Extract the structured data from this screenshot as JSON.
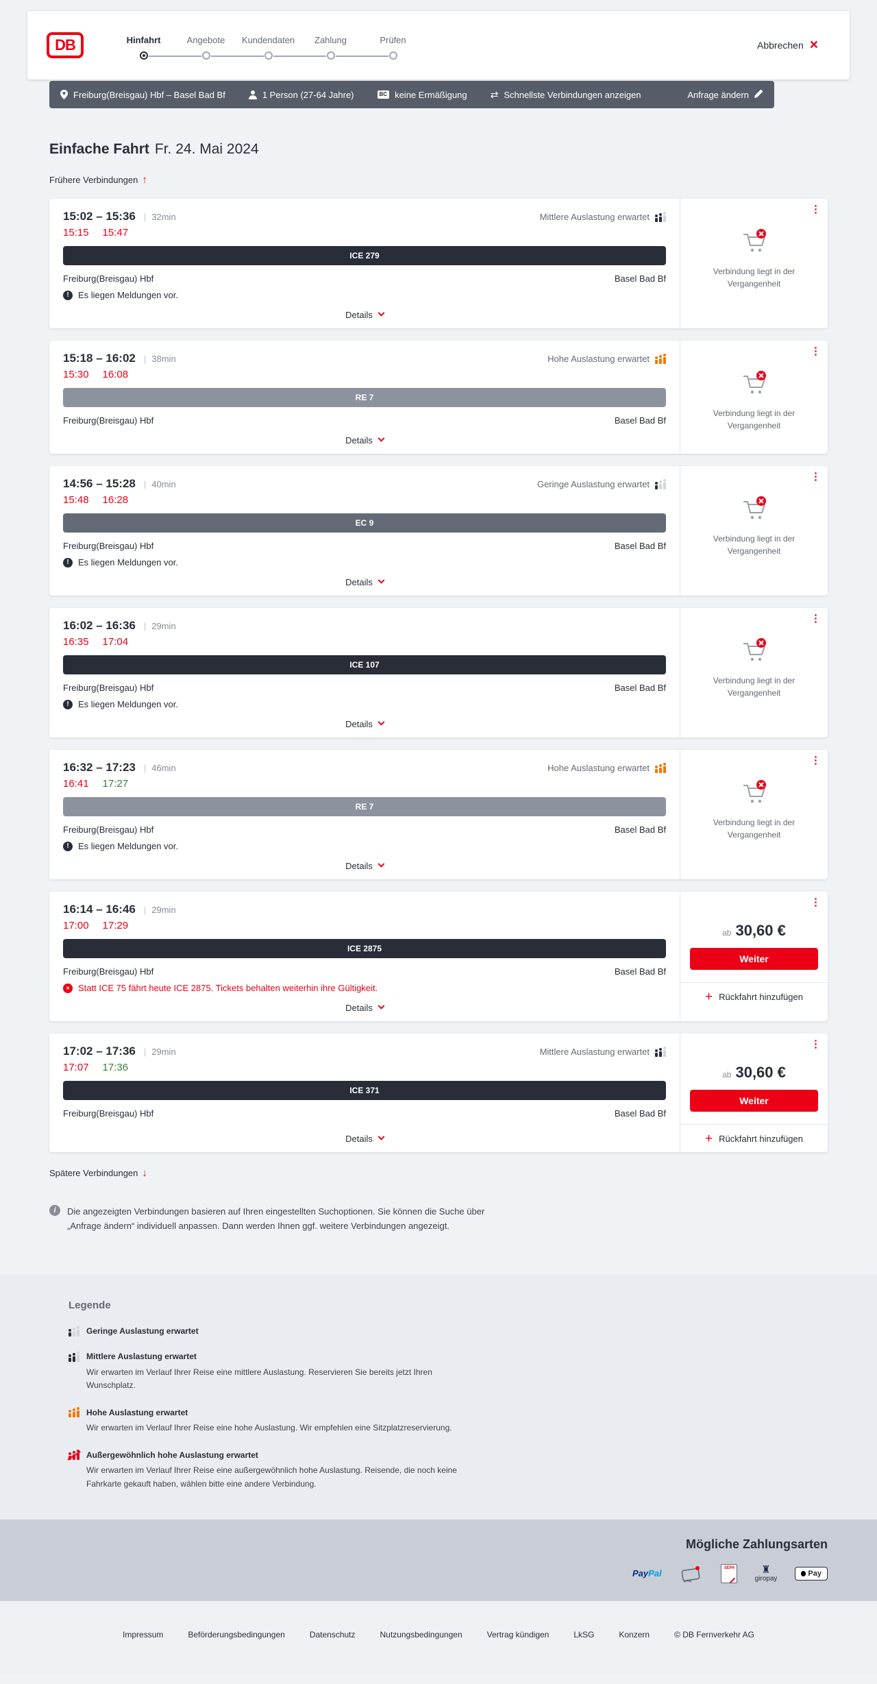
{
  "colors": {
    "brand_red": "#ec0016",
    "dark": "#282d37",
    "slate_bar": "#575d68",
    "late_red": "#ec0016",
    "early_green": "#308236",
    "occupancy_orange": "#f07800"
  },
  "header": {
    "logo": "DB",
    "cancel": "Abbrechen",
    "steps": [
      {
        "label": "Hinfahrt",
        "active": "true"
      },
      {
        "label": "Angebote",
        "active": "false"
      },
      {
        "label": "Kundendaten",
        "active": "false"
      },
      {
        "label": "Zahlung",
        "active": "false"
      },
      {
        "label": "Prüfen",
        "active": "false"
      }
    ]
  },
  "filterbar": {
    "route": "Freiburg(Breisgau) Hbf – Basel Bad Bf",
    "passenger": "1 Person (27-64 Jahre)",
    "bahncard_badge": "BC",
    "discount": "keine Ermäßigung",
    "speed": "Schnellste Verbindungen anzeigen",
    "change": "Anfrage ändern"
  },
  "page": {
    "title": "Einfache Fahrt",
    "date": "Fr. 24. Mai 2024",
    "earlier": "Frühere Verbindungen",
    "later": "Spätere Verbindungen",
    "info": "Die angezeigten Verbindungen basieren auf Ihren eingestellten Suchoptionen. Sie können die Suche über „Anfrage ändern“ individuell anpassen. Dann werden Ihnen ggf. weitere Verbindungen angezeigt."
  },
  "connections": [
    {
      "time_range": "15:02 – 15:36",
      "duration": "32min",
      "rt_dep": "15:15",
      "rt_dep_tone": "late",
      "rt_arr": "15:47",
      "rt_arr_tone": "late",
      "occupancy": "Mittlere Auslastung erwartet",
      "occupancy_level": "mittel",
      "train": "ICE 279",
      "train_kind": "ice",
      "from": "Freiburg(Breisgau) Hbf",
      "to": "Basel Bad Bf",
      "notice": "Es liegen Meldungen vor.",
      "notice_kind": "info",
      "details": "Details",
      "aside": {
        "type": "past",
        "message": "Verbindung liegt in der Vergangenheit"
      }
    },
    {
      "time_range": "15:18 – 16:02",
      "duration": "38min",
      "rt_dep": "15:30",
      "rt_dep_tone": "late",
      "rt_arr": "16:08",
      "rt_arr_tone": "late",
      "occupancy": "Hohe Auslastung erwartet",
      "occupancy_level": "hoch",
      "train": "RE 7",
      "train_kind": "re",
      "from": "Freiburg(Breisgau) Hbf",
      "to": "Basel Bad Bf",
      "notice": "",
      "notice_kind": "",
      "details": "Details",
      "aside": {
        "type": "past",
        "message": "Verbindung liegt in der Vergangenheit"
      }
    },
    {
      "time_range": "14:56 – 15:28",
      "duration": "40min",
      "rt_dep": "15:48",
      "rt_dep_tone": "late",
      "rt_arr": "16:28",
      "rt_arr_tone": "late",
      "occupancy": "Geringe Auslastung erwartet",
      "occupancy_level": "gering",
      "train": "EC 9",
      "train_kind": "ec",
      "from": "Freiburg(Breisgau) Hbf",
      "to": "Basel Bad Bf",
      "notice": "Es liegen Meldungen vor.",
      "notice_kind": "info",
      "details": "Details",
      "aside": {
        "type": "past",
        "message": "Verbindung liegt in der Vergangenheit"
      }
    },
    {
      "time_range": "16:02 – 16:36",
      "duration": "29min",
      "rt_dep": "16:35",
      "rt_dep_tone": "late",
      "rt_arr": "17:04",
      "rt_arr_tone": "late",
      "occupancy": "",
      "occupancy_level": "",
      "train": "ICE 107",
      "train_kind": "ice",
      "from": "Freiburg(Breisgau) Hbf",
      "to": "Basel Bad Bf",
      "notice": "Es liegen Meldungen vor.",
      "notice_kind": "info",
      "details": "Details",
      "aside": {
        "type": "past",
        "message": "Verbindung liegt in der Vergangenheit"
      }
    },
    {
      "time_range": "16:32 – 17:23",
      "duration": "46min",
      "rt_dep": "16:41",
      "rt_dep_tone": "late",
      "rt_arr": "17:27",
      "rt_arr_tone": "early",
      "occupancy": "Hohe Auslastung erwartet",
      "occupancy_level": "hoch",
      "train": "RE 7",
      "train_kind": "re",
      "from": "Freiburg(Breisgau) Hbf",
      "to": "Basel Bad Bf",
      "notice": "Es liegen Meldungen vor.",
      "notice_kind": "info",
      "details": "Details",
      "aside": {
        "type": "past",
        "message": "Verbindung liegt in der Vergangenheit"
      }
    },
    {
      "time_range": "16:14 – 16:46",
      "duration": "29min",
      "rt_dep": "17:00",
      "rt_dep_tone": "late",
      "rt_arr": "17:29",
      "rt_arr_tone": "late",
      "occupancy": "",
      "occupancy_level": "",
      "train": "ICE 2875",
      "train_kind": "ice",
      "from": "Freiburg(Breisgau) Hbf",
      "to": "Basel Bad Bf",
      "notice": "Statt ICE 75 fährt heute ICE 2875. Tickets behalten weiterhin ihre Gültigkeit.",
      "notice_kind": "error",
      "details": "Details",
      "aside": {
        "type": "offer",
        "price_prefix": "ab",
        "price": "30,60 €",
        "cta": "Weiter",
        "add_return": "Rückfahrt hinzufügen"
      }
    },
    {
      "time_range": "17:02 – 17:36",
      "duration": "29min",
      "rt_dep": "17:07",
      "rt_dep_tone": "late",
      "rt_arr": "17:36",
      "rt_arr_tone": "early",
      "occupancy": "Mittlere Auslastung erwartet",
      "occupancy_level": "mittel",
      "train": "ICE 371",
      "train_kind": "ice",
      "from": "Freiburg(Breisgau) Hbf",
      "to": "Basel Bad Bf",
      "notice": "",
      "notice_kind": "",
      "details": "Details",
      "aside": {
        "type": "offer",
        "price_prefix": "ab",
        "price": "30,60 €",
        "cta": "Weiter",
        "add_return": "Rückfahrt hinzufügen"
      }
    }
  ],
  "legend": {
    "title": "Legende",
    "items": [
      {
        "label": "Geringe Auslastung erwartet",
        "level": "gering",
        "desc": ""
      },
      {
        "label": "Mittlere Auslastung erwartet",
        "level": "mittel",
        "desc": "Wir erwarten im Verlauf Ihrer Reise eine mittlere Auslastung. Reservieren Sie bereits jetzt Ihren Wunschplatz."
      },
      {
        "label": "Hohe Auslastung erwartet",
        "level": "hoch",
        "desc": "Wir erwarten im Verlauf Ihrer Reise eine hohe Auslastung. Wir empfehlen eine Sitzplatzreservierung."
      },
      {
        "label": "Außergewöhnlich hohe Auslastung erwartet",
        "level": "sehr-hoch",
        "desc": "Wir erwarten im Verlauf Ihrer Reise eine außergewöhnlich hohe Auslastung. Reisende, die noch keine Fahrkarte gekauft haben, wählen bitte eine andere Verbindung."
      }
    ]
  },
  "payments": {
    "title": "Mögliche Zahlungsarten",
    "paypal_p1": "Pay",
    "paypal_p2": "Pal",
    "sepa_label": "SEPA",
    "giropay_label": "giropay",
    "applepay_label": "Pay"
  },
  "footer": {
    "links": [
      "Impressum",
      "Beförderungsbedingungen",
      "Datenschutz",
      "Nutzungsbedingungen",
      "Vertrag kündigen",
      "LkSG",
      "Konzern"
    ],
    "copyright": "© DB Fernverkehr AG"
  }
}
